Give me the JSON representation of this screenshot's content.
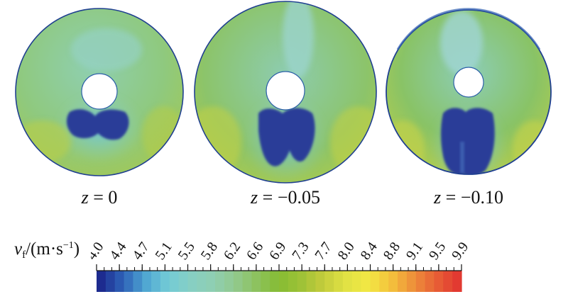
{
  "panels": [
    {
      "var": "z",
      "eq": "=",
      "value": "0"
    },
    {
      "var": "z",
      "eq": "=",
      "value": "−0.05"
    },
    {
      "var": "z",
      "eq": "=",
      "value": "−0.10"
    }
  ],
  "colorbar": {
    "symbol": "v",
    "subscript": "f",
    "unit_open": "/(m·s",
    "unit_sup": "−1",
    "unit_close": ")",
    "ticks": [
      "4.0",
      "4.4",
      "4.7",
      "5.1",
      "5.5",
      "5.8",
      "6.2",
      "6.6",
      "6.9",
      "7.3",
      "7.7",
      "8.0",
      "8.4",
      "8.8",
      "9.1",
      "9.5",
      "9.9"
    ],
    "colors": [
      "#1d2b8f",
      "#2e63b8",
      "#4fa6d2",
      "#72cbd6",
      "#86cfc4",
      "#8fcfb3",
      "#92c98f",
      "#8dc25e",
      "#86bc33",
      "#9ec237",
      "#c4cc3c",
      "#e1e244",
      "#f2e844",
      "#f4c33c",
      "#ee913a",
      "#e86236",
      "#e23a31"
    ],
    "range": [
      4.0,
      9.9
    ]
  }
}
